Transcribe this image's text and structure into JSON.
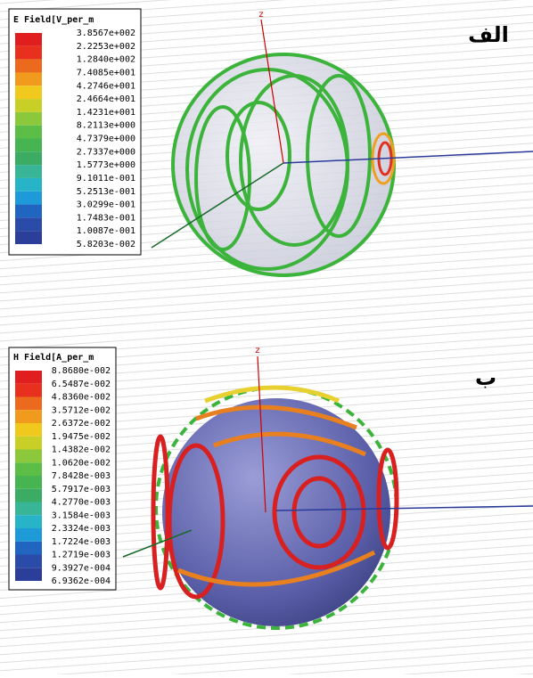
{
  "panels": [
    {
      "label": "الف",
      "legend_title": "E Field[V_per_m",
      "axis_label": "z",
      "legend_values": [
        "3.8567e+002",
        "2.2253e+002",
        "1.2840e+002",
        "7.4085e+001",
        "4.2746e+001",
        "2.4664e+001",
        "1.4231e+001",
        "8.2113e+000",
        "4.7379e+000",
        "2.7337e+000",
        "1.5773e+000",
        "9.1011e-001",
        "5.2513e-001",
        "3.0299e-001",
        "1.7483e-001",
        "1.0087e-001",
        "5.8203e-002"
      ]
    },
    {
      "label": "ب",
      "legend_title": "H Field[A_per_m",
      "axis_label": "z",
      "legend_values": [
        "8.8680e-002",
        "6.5487e-002",
        "4.8360e-002",
        "3.5712e-002",
        "2.6372e-002",
        "1.9475e-002",
        "1.4382e-002",
        "1.0620e-002",
        "7.8428e-003",
        "5.7917e-003",
        "4.2770e-003",
        "3.1584e-003",
        "2.3324e-003",
        "1.7224e-003",
        "1.2719e-003",
        "9.3927e-004",
        "6.9362e-004"
      ]
    }
  ]
}
